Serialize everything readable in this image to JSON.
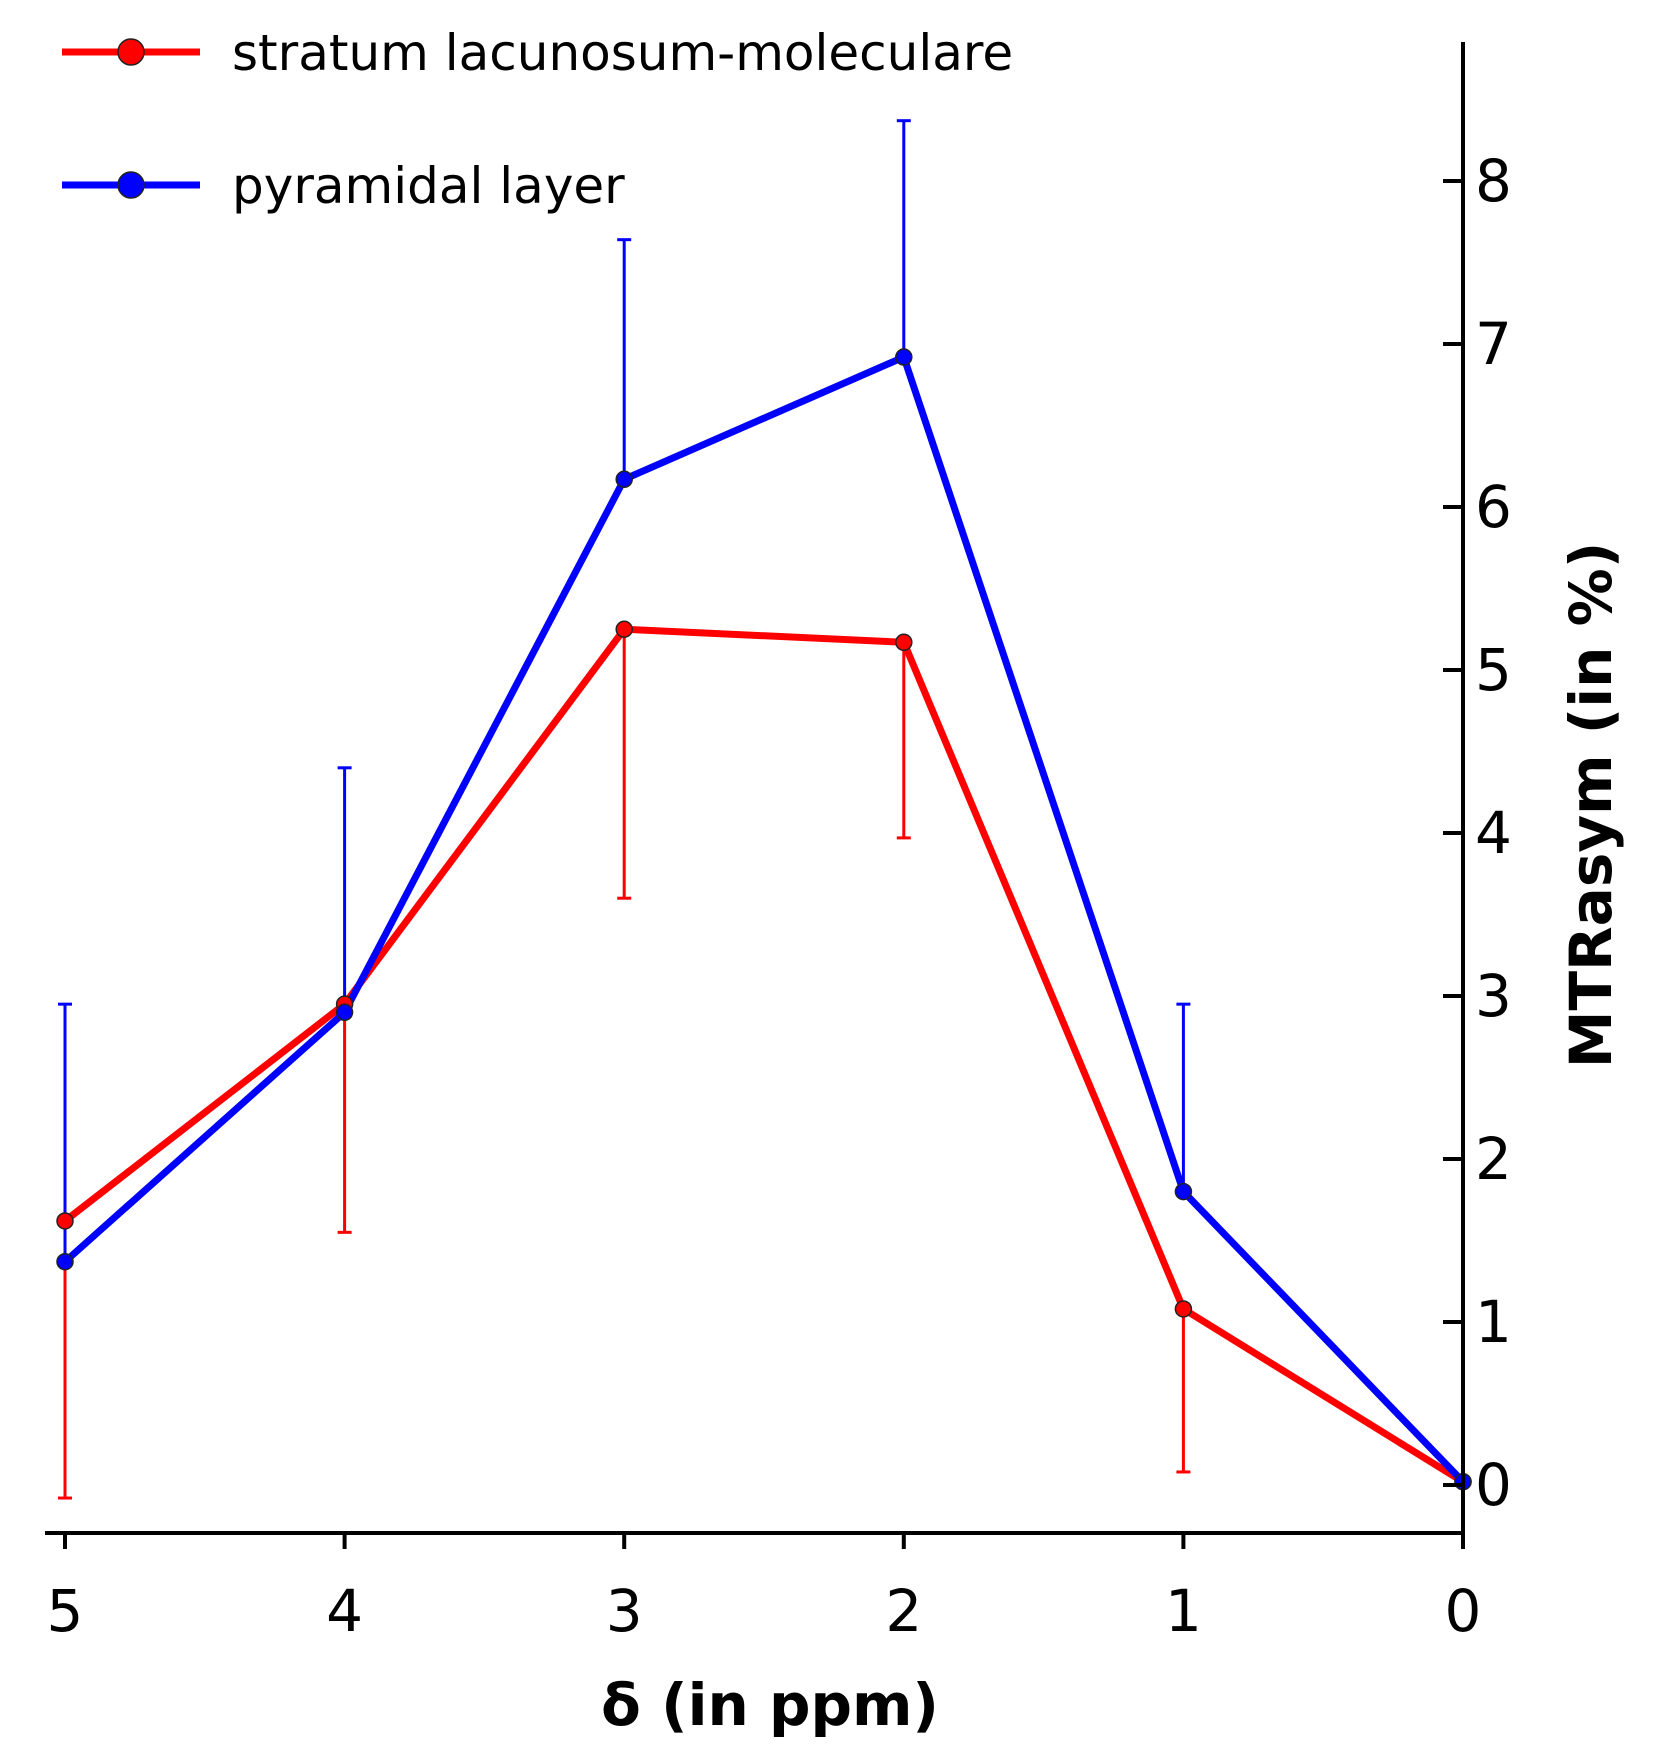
{
  "chart_data": {
    "type": "line",
    "title": "",
    "xlabel": "δ (in ppm)",
    "ylabel": "MTRasym (in %)",
    "x": [
      5,
      4,
      3,
      2,
      1,
      0
    ],
    "xlim": [
      5,
      0
    ],
    "ylim": [
      0,
      8.9
    ],
    "x_ticks": [
      "5",
      "4",
      "3",
      "2",
      "1",
      "0"
    ],
    "y_ticks": [
      "0",
      "1",
      "2",
      "3",
      "4",
      "5",
      "6",
      "7",
      "8"
    ],
    "y_axis_side": "right",
    "legend_position": "top-left",
    "grid": false,
    "series": [
      {
        "name": "stratum lacunosum-moleculare",
        "color": "#ff0000",
        "values": [
          1.62,
          2.95,
          5.25,
          5.17,
          1.08,
          0.02
        ],
        "error_bar_direction": "down",
        "error": [
          1.7,
          1.4,
          1.65,
          1.2,
          1.0,
          0
        ]
      },
      {
        "name": "pyramidal layer",
        "color": "#0000ff",
        "values": [
          1.37,
          2.9,
          6.17,
          6.92,
          1.8,
          0.02
        ],
        "error_bar_direction": "up",
        "error": [
          1.58,
          1.5,
          1.47,
          1.45,
          1.15,
          0
        ]
      }
    ]
  }
}
